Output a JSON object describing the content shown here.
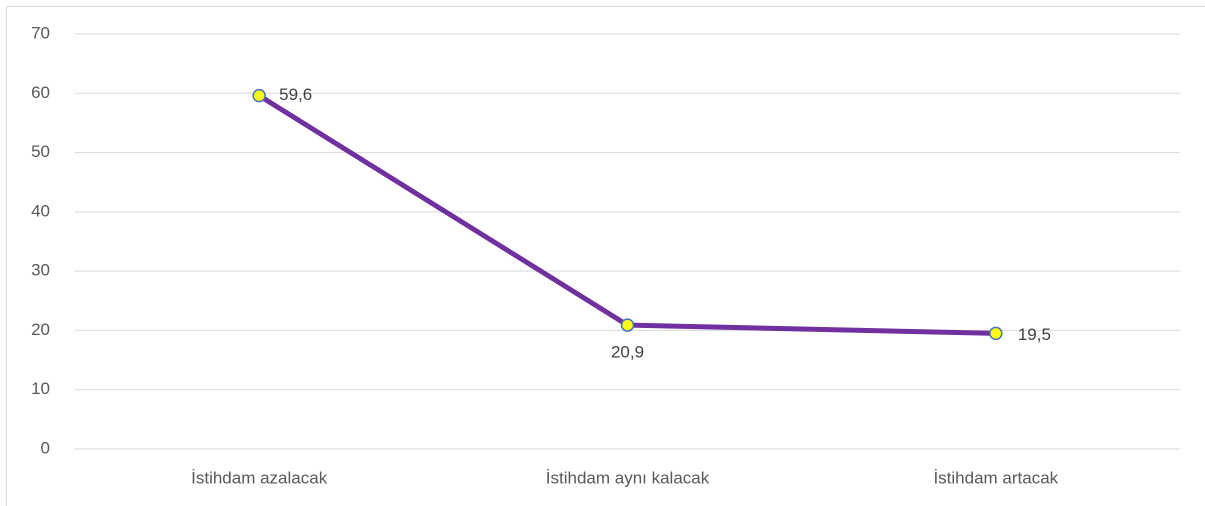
{
  "chart_data": {
    "type": "line",
    "categories": [
      "İstihdam azalacak",
      "İstihdam aynı kalacak",
      "İstihdam artacak"
    ],
    "series": [
      {
        "color": "#7030a0",
        "values": [
          59.6,
          20.9,
          19.5
        ],
        "value_labels": [
          "59,6",
          "20,9",
          "19,5"
        ]
      }
    ],
    "marker_color": "#ffff00",
    "marker_edge": "#4472c4",
    "ylim": [
      0,
      70
    ],
    "yticks": [
      0,
      10,
      20,
      30,
      40,
      50,
      60,
      70
    ],
    "grid": true
  }
}
